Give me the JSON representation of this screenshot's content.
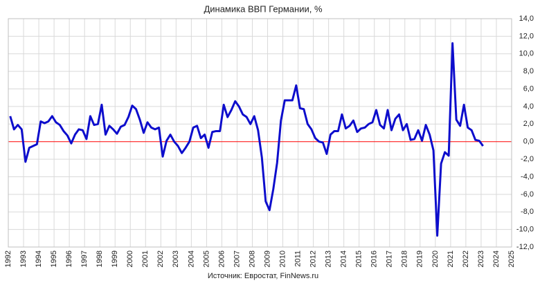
{
  "chart_data": {
    "type": "line",
    "title": "Динамика ВВП Германии, %",
    "source": "Источник: Евростат, FinNews.ru",
    "x": [
      1992.125,
      1992.375,
      1992.625,
      1992.875,
      1993.125,
      1993.375,
      1993.625,
      1993.875,
      1994.125,
      1994.375,
      1994.625,
      1994.875,
      1995.125,
      1995.375,
      1995.625,
      1995.875,
      1996.125,
      1996.375,
      1996.625,
      1996.875,
      1997.125,
      1997.375,
      1997.625,
      1997.875,
      1998.125,
      1998.375,
      1998.625,
      1998.875,
      1999.125,
      1999.375,
      1999.625,
      1999.875,
      2000.125,
      2000.375,
      2000.625,
      2000.875,
      2001.125,
      2001.375,
      2001.625,
      2001.875,
      2002.125,
      2002.375,
      2002.625,
      2002.875,
      2003.125,
      2003.375,
      2003.625,
      2003.875,
      2004.125,
      2004.375,
      2004.625,
      2004.875,
      2005.125,
      2005.375,
      2005.625,
      2005.875,
      2006.125,
      2006.375,
      2006.625,
      2006.875,
      2007.125,
      2007.375,
      2007.625,
      2007.875,
      2008.125,
      2008.375,
      2008.625,
      2008.875,
      2009.125,
      2009.375,
      2009.625,
      2009.875,
      2010.125,
      2010.375,
      2010.625,
      2010.875,
      2011.125,
      2011.375,
      2011.625,
      2011.875,
      2012.125,
      2012.375,
      2012.625,
      2012.875,
      2013.125,
      2013.375,
      2013.625,
      2013.875,
      2014.125,
      2014.375,
      2014.625,
      2014.875,
      2015.125,
      2015.375,
      2015.625,
      2015.875,
      2016.125,
      2016.375,
      2016.625,
      2016.875,
      2017.125,
      2017.375,
      2017.625,
      2017.875,
      2018.125,
      2018.375,
      2018.625,
      2018.875,
      2019.125,
      2019.375,
      2019.625,
      2019.875,
      2020.125,
      2020.375,
      2020.625,
      2020.875,
      2021.125,
      2021.375,
      2021.625,
      2021.875,
      2022.125,
      2022.375,
      2022.625,
      2022.875,
      2023.125
    ],
    "series": [
      {
        "color": "#0d0dcc",
        "values": [
          2.9,
          1.4,
          1.9,
          1.4,
          -2.3,
          -0.7,
          -0.5,
          -0.3,
          2.3,
          2.1,
          2.3,
          2.9,
          2.2,
          1.9,
          1.2,
          0.7,
          -0.2,
          0.8,
          1.4,
          1.3,
          0.3,
          2.9,
          1.9,
          2.0,
          4.2,
          0.8,
          1.8,
          1.4,
          0.9,
          1.7,
          1.9,
          2.8,
          4.1,
          3.7,
          2.5,
          1.0,
          2.2,
          1.6,
          1.4,
          1.6,
          -1.7,
          0.1,
          0.8,
          0.0,
          -0.5,
          -1.3,
          -0.7,
          0.0,
          1.6,
          1.8,
          0.4,
          0.8,
          -0.7,
          1.1,
          1.2,
          1.2,
          4.2,
          2.8,
          3.6,
          4.6,
          4.0,
          3.1,
          2.8,
          2.0,
          2.9,
          1.3,
          -1.8,
          -6.8,
          -7.8,
          -5.4,
          -2.4,
          2.4,
          4.7,
          4.7,
          4.7,
          6.4,
          3.8,
          3.7,
          2.0,
          1.4,
          0.4,
          0.0,
          -0.1,
          -1.4,
          0.8,
          1.2,
          1.2,
          3.1,
          1.5,
          1.8,
          2.4,
          1.1,
          1.5,
          1.6,
          2.0,
          2.2,
          3.6,
          1.9,
          1.5,
          3.6,
          1.3,
          2.6,
          3.1,
          1.3,
          2.0,
          0.2,
          0.3,
          1.3,
          0.1,
          1.9,
          0.8,
          -1.0,
          -10.7,
          -2.5,
          -1.2,
          -1.6,
          11.2,
          2.5,
          1.8,
          4.2,
          1.6,
          1.3,
          0.2,
          0.1,
          -0.5
        ]
      }
    ],
    "xlim": [
      1992,
      2025
    ],
    "xticks": [
      1992,
      1993,
      1994,
      1995,
      1996,
      1997,
      1998,
      1999,
      2000,
      2001,
      2002,
      2003,
      2004,
      2005,
      2006,
      2007,
      2008,
      2009,
      2010,
      2011,
      2012,
      2013,
      2014,
      2015,
      2016,
      2017,
      2018,
      2019,
      2020,
      2021,
      2022,
      2023,
      2024,
      2025
    ],
    "ylim": [
      -12,
      14
    ],
    "yticks": [
      {
        "value": -12,
        "label": "-12,0"
      },
      {
        "value": -10,
        "label": "-10,0"
      },
      {
        "value": -8,
        "label": "-8,0"
      },
      {
        "value": -6,
        "label": "-6,0"
      },
      {
        "value": -4,
        "label": "-4,0"
      },
      {
        "value": -2,
        "label": "-2,0"
      },
      {
        "value": 0,
        "label": "0,0"
      },
      {
        "value": 2,
        "label": "2,0"
      },
      {
        "value": 4,
        "label": "4,0"
      },
      {
        "value": 6,
        "label": "6,0"
      },
      {
        "value": 8,
        "label": "8,0"
      },
      {
        "value": 10,
        "label": "10,0"
      },
      {
        "value": 12,
        "label": "12,0"
      },
      {
        "value": 14,
        "label": "14,0"
      }
    ],
    "grid": true,
    "grid_color": "#d9d9d9",
    "zero_line_color": "#ff0000"
  }
}
